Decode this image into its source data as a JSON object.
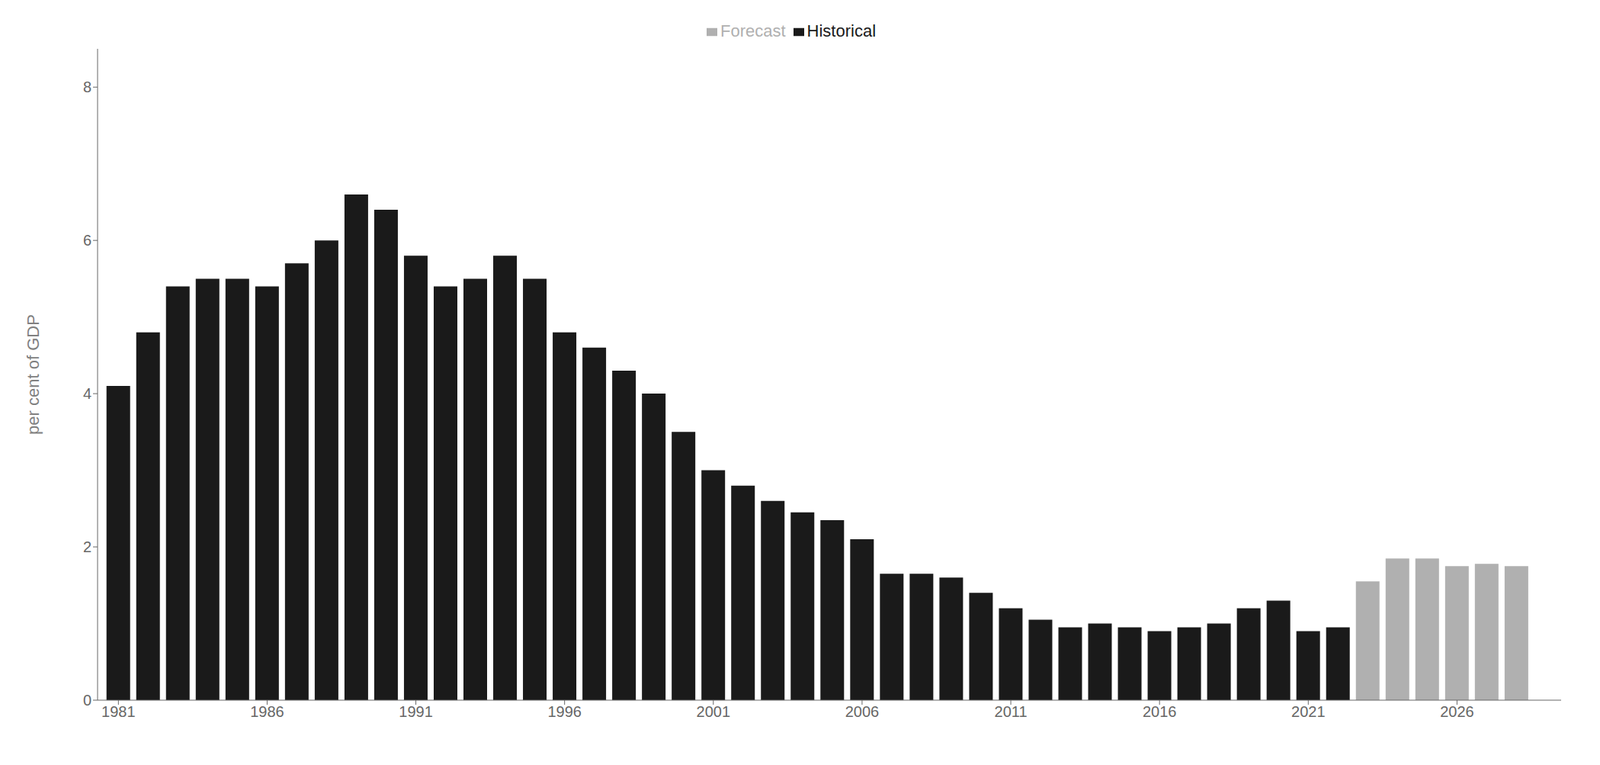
{
  "chart_data": {
    "type": "bar",
    "ylabel": "per cent of GDP",
    "x": [
      1981,
      1982,
      1983,
      1984,
      1985,
      1986,
      1987,
      1988,
      1989,
      1990,
      1991,
      1992,
      1993,
      1994,
      1995,
      1996,
      1997,
      1998,
      1999,
      2000,
      2001,
      2002,
      2003,
      2004,
      2005,
      2006,
      2007,
      2008,
      2009,
      2010,
      2011,
      2012,
      2013,
      2014,
      2015,
      2016,
      2017,
      2018,
      2019,
      2020,
      2021,
      2022,
      2023,
      2024,
      2025,
      2026,
      2027,
      2028
    ],
    "series": [
      {
        "name": "Historical",
        "color": "#1a1a1a",
        "values": [
          4.1,
          4.8,
          5.4,
          5.5,
          5.5,
          5.4,
          5.7,
          6.0,
          6.6,
          6.4,
          5.8,
          5.4,
          5.5,
          5.8,
          5.5,
          4.8,
          4.6,
          4.3,
          4.0,
          3.5,
          3.0,
          2.8,
          2.6,
          2.45,
          2.35,
          2.1,
          1.65,
          1.65,
          1.6,
          1.4,
          1.2,
          1.05,
          0.95,
          1.0,
          0.95,
          0.9,
          0.95,
          1.0,
          1.2,
          1.3,
          0.9,
          0.95,
          null,
          null,
          null,
          null,
          null,
          null
        ]
      },
      {
        "name": "Forecast",
        "color": "#b0b0b0",
        "values": [
          null,
          null,
          null,
          null,
          null,
          null,
          null,
          null,
          null,
          null,
          null,
          null,
          null,
          null,
          null,
          null,
          null,
          null,
          null,
          null,
          null,
          null,
          null,
          null,
          null,
          null,
          null,
          null,
          null,
          null,
          null,
          null,
          null,
          null,
          null,
          null,
          null,
          null,
          null,
          null,
          null,
          null,
          1.55,
          1.85,
          1.85,
          1.75,
          1.78,
          1.75
        ]
      }
    ],
    "xlim": [
      1980.3,
      2029.5
    ],
    "xticks": [
      1981,
      1986,
      1991,
      1996,
      2001,
      2006,
      2011,
      2016,
      2021,
      2026
    ],
    "ylim": [
      0,
      8.5
    ],
    "yticks": [
      0,
      2,
      4,
      6,
      8
    ],
    "grid": false,
    "legend": "top"
  }
}
